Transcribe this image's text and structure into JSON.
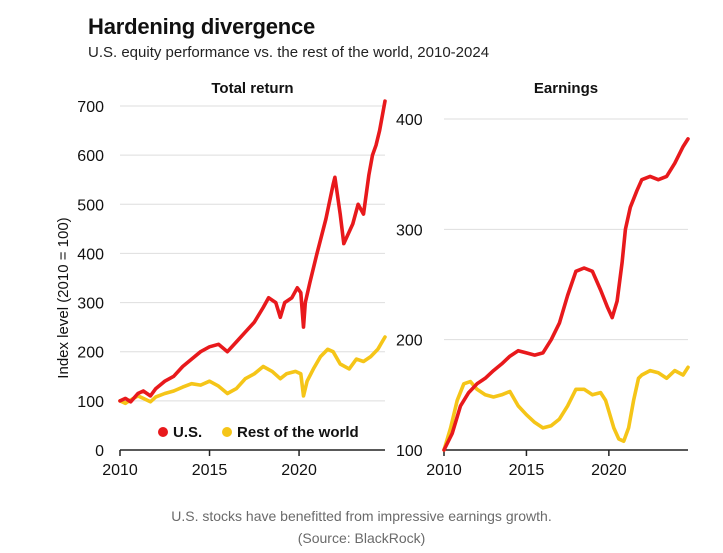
{
  "title": "Hardening divergence",
  "subtitle": "U.S. equity performance vs. the rest of the world, 2010-2024",
  "caption_line1": "U.S. stocks have benefitted from impressive earnings growth.",
  "caption_line2": "(Source: BlackRock)",
  "colors": {
    "us": "#e8191c",
    "row": "#f5c518",
    "grid": "#dedede",
    "axis": "#222222"
  },
  "chart_data": [
    {
      "type": "line",
      "title": "Total return",
      "ylabel": "Index level (2010 = 100)",
      "xlim": [
        2010,
        2024.8
      ],
      "ylim": [
        0,
        700
      ],
      "xticks": [
        2010,
        2015,
        2020
      ],
      "yticks": [
        0,
        100,
        200,
        300,
        400,
        500,
        600,
        700
      ],
      "grid": true,
      "legend": {
        "placement": "bottom-right",
        "entries": [
          "U.S.",
          "Rest of the world"
        ]
      },
      "series": [
        {
          "name": "U.S.",
          "color": "#e8191c",
          "x": [
            2010.0,
            2010.3,
            2010.6,
            2011.0,
            2011.3,
            2011.7,
            2012.0,
            2012.5,
            2013.0,
            2013.5,
            2014.0,
            2014.5,
            2015.0,
            2015.5,
            2016.0,
            2016.5,
            2017.0,
            2017.5,
            2018.0,
            2018.3,
            2018.7,
            2018.95,
            2019.2,
            2019.6,
            2019.9,
            2020.1,
            2020.25,
            2020.35,
            2020.6,
            2021.0,
            2021.5,
            2021.9,
            2022.0,
            2022.3,
            2022.5,
            2022.75,
            2023.0,
            2023.3,
            2023.6,
            2023.9,
            2024.1,
            2024.3,
            2024.5,
            2024.7,
            2024.8
          ],
          "y": [
            100,
            105,
            98,
            115,
            120,
            110,
            125,
            140,
            150,
            170,
            185,
            200,
            210,
            215,
            200,
            220,
            240,
            260,
            290,
            310,
            300,
            270,
            300,
            310,
            330,
            320,
            250,
            300,
            340,
            400,
            470,
            540,
            555,
            480,
            420,
            440,
            460,
            500,
            480,
            560,
            600,
            620,
            650,
            690,
            710
          ]
        },
        {
          "name": "Rest of the world",
          "color": "#f5c518",
          "x": [
            2010.0,
            2010.3,
            2010.6,
            2011.0,
            2011.3,
            2011.7,
            2012.0,
            2012.5,
            2013.0,
            2013.5,
            2014.0,
            2014.5,
            2015.0,
            2015.5,
            2016.0,
            2016.5,
            2017.0,
            2017.5,
            2018.0,
            2018.5,
            2018.95,
            2019.3,
            2019.8,
            2020.1,
            2020.25,
            2020.45,
            2020.8,
            2021.2,
            2021.6,
            2021.9,
            2022.3,
            2022.8,
            2023.2,
            2023.6,
            2024.0,
            2024.4,
            2024.8
          ],
          "y": [
            100,
            95,
            102,
            110,
            105,
            98,
            108,
            115,
            120,
            128,
            135,
            132,
            140,
            130,
            115,
            125,
            145,
            155,
            170,
            160,
            145,
            155,
            160,
            155,
            110,
            140,
            165,
            190,
            205,
            200,
            175,
            165,
            185,
            180,
            190,
            205,
            230
          ]
        }
      ]
    },
    {
      "type": "line",
      "title": "Earnings",
      "xlim": [
        2010,
        2024.8
      ],
      "ylim": [
        100,
        410
      ],
      "xticks": [
        2010,
        2015,
        2020
      ],
      "yticks": [
        100,
        200,
        300,
        400
      ],
      "grid": true,
      "series": [
        {
          "name": "U.S.",
          "color": "#e8191c",
          "x": [
            2010.0,
            2010.5,
            2011.0,
            2011.5,
            2012.0,
            2012.5,
            2013.0,
            2013.5,
            2014.0,
            2014.5,
            2015.0,
            2015.5,
            2016.0,
            2016.5,
            2017.0,
            2017.5,
            2018.0,
            2018.5,
            2019.0,
            2019.5,
            2019.9,
            2020.2,
            2020.5,
            2020.8,
            2021.0,
            2021.3,
            2021.7,
            2022.0,
            2022.5,
            2023.0,
            2023.5,
            2024.0,
            2024.5,
            2024.8
          ],
          "y": [
            100,
            115,
            140,
            152,
            160,
            165,
            172,
            178,
            185,
            190,
            188,
            186,
            188,
            200,
            215,
            240,
            262,
            265,
            262,
            245,
            230,
            220,
            235,
            270,
            300,
            320,
            335,
            345,
            348,
            345,
            348,
            360,
            375,
            382
          ]
        },
        {
          "name": "Rest of the world",
          "color": "#f5c518",
          "x": [
            2010.0,
            2010.4,
            2010.8,
            2011.2,
            2011.6,
            2012.0,
            2012.5,
            2013.0,
            2013.5,
            2014.0,
            2014.5,
            2015.0,
            2015.5,
            2016.0,
            2016.5,
            2017.0,
            2017.5,
            2018.0,
            2018.5,
            2019.0,
            2019.5,
            2019.8,
            2020.0,
            2020.3,
            2020.6,
            2020.9,
            2021.2,
            2021.5,
            2021.8,
            2022.0,
            2022.5,
            2023.0,
            2023.5,
            2024.0,
            2024.5,
            2024.8
          ],
          "y": [
            100,
            120,
            145,
            160,
            162,
            155,
            150,
            148,
            150,
            153,
            140,
            132,
            125,
            120,
            122,
            128,
            140,
            155,
            155,
            150,
            152,
            145,
            135,
            120,
            110,
            108,
            120,
            145,
            165,
            168,
            172,
            170,
            165,
            172,
            168,
            175
          ]
        }
      ]
    }
  ]
}
